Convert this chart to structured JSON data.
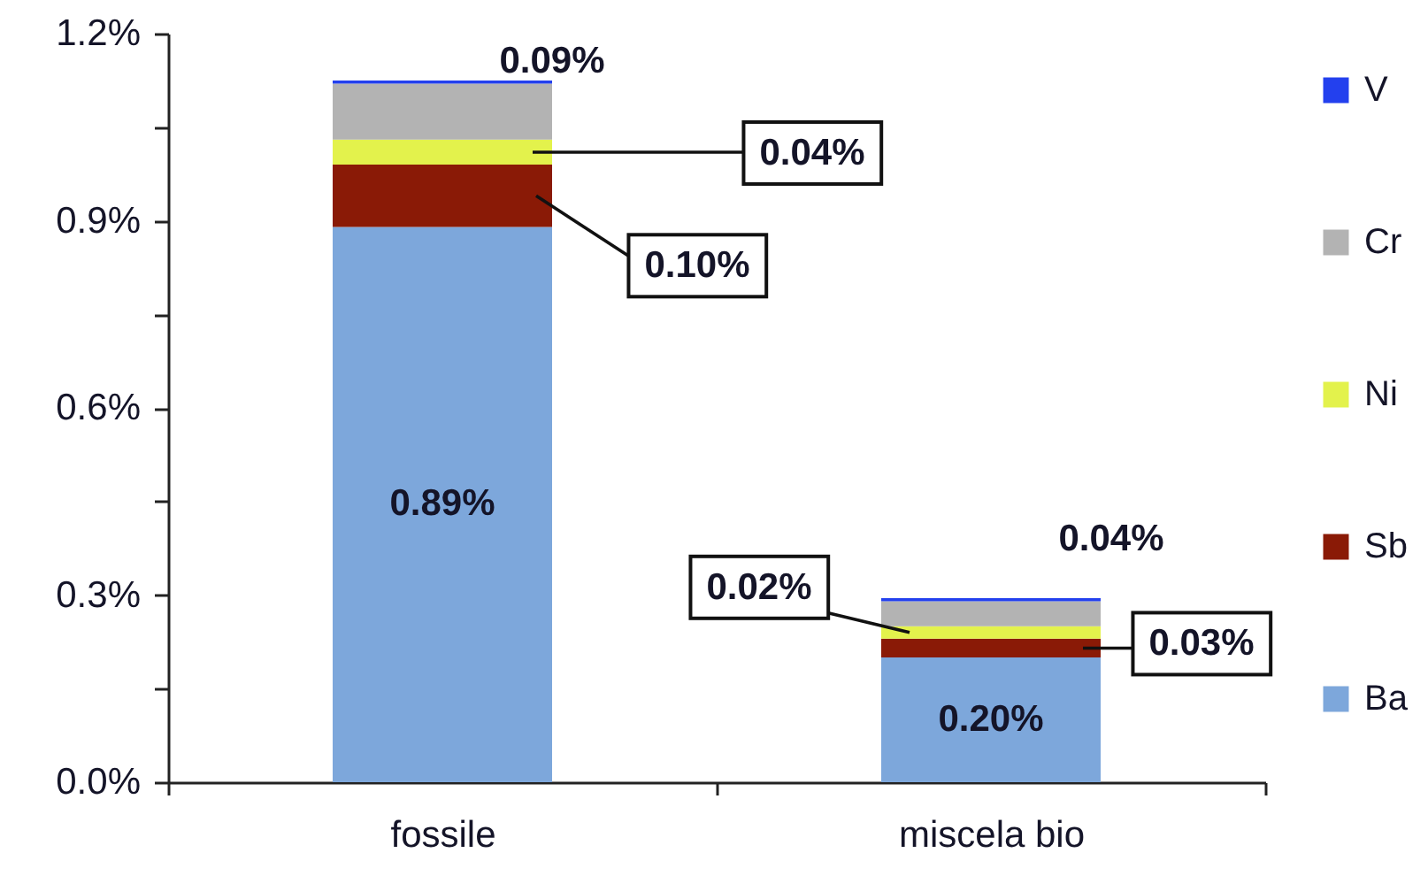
{
  "chart_data": {
    "type": "bar",
    "categories": [
      "fossile",
      "miscela bio"
    ],
    "stacked": true,
    "series": [
      {
        "name": "Ba",
        "color": "#7da7db",
        "values": [
          0.89,
          0.2
        ],
        "value_labels": [
          "0.89%",
          "0.20%"
        ]
      },
      {
        "name": "Sb",
        "color": "#8a1a06",
        "values": [
          0.1,
          0.03
        ],
        "value_labels": [
          "0.10%",
          "0.03%"
        ]
      },
      {
        "name": "Ni",
        "color": "#e3f24c",
        "values": [
          0.04,
          0.02
        ],
        "value_labels": [
          "0.04%",
          "0.02%"
        ]
      },
      {
        "name": "Cr",
        "color": "#b3b3b3",
        "values": [
          0.09,
          0.04
        ],
        "value_labels": [
          "0.09%",
          "0.04%"
        ]
      },
      {
        "name": "V",
        "color": "#2340ee",
        "values": [
          0.005,
          0.005
        ],
        "value_labels": [
          null,
          null
        ]
      }
    ],
    "ylim": [
      0,
      1.2
    ],
    "yticks": [
      {
        "value": 0,
        "label": "0.0%"
      },
      {
        "value": 0.15,
        "label": null
      },
      {
        "value": 0.3,
        "label": "0.3%"
      },
      {
        "value": 0.45,
        "label": null
      },
      {
        "value": 0.6,
        "label": "0.6%"
      },
      {
        "value": 0.75,
        "label": null
      },
      {
        "value": 0.9,
        "label": "0.9%"
      },
      {
        "value": 1.05,
        "label": null
      },
      {
        "value": 1.2,
        "label": "1.2%"
      }
    ],
    "legend": "right"
  }
}
